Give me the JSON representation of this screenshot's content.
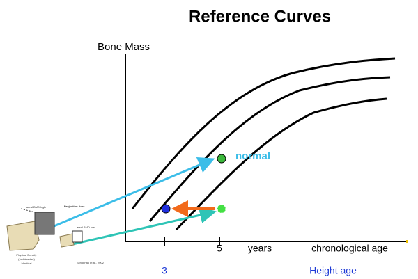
{
  "title": "Reference Curves",
  "axes": {
    "y_label": "Bone Mass",
    "x_tick": 5,
    "x_unit": "years",
    "x_label": "chronological age"
  },
  "points": {
    "normal_label": "normal"
  },
  "height_age": {
    "tick": 3,
    "label": "Height age"
  },
  "illustration": {
    "high": "areal BMD high",
    "projection": "Projection Area",
    "low": "areal BMD low",
    "density": "Physical Density",
    "archimedes": "(Archimedes)",
    "identical": "Identical",
    "citation": "Schoenau et al., 2002"
  }
}
